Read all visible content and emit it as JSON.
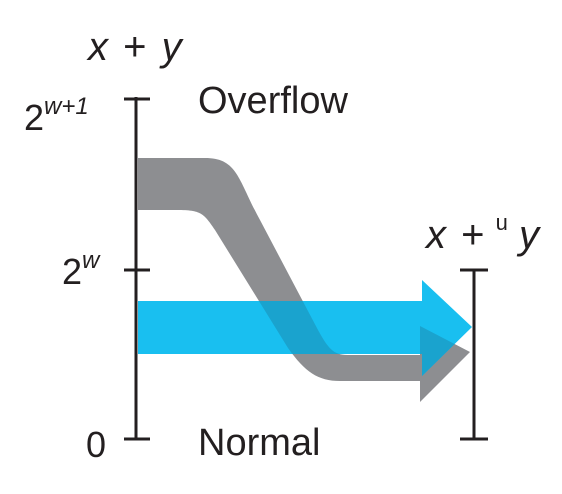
{
  "left_axis": {
    "title_x": "x",
    "title_plus": "+",
    "title_y": "y",
    "tick_top_base": "2",
    "tick_top_exp": "w+1",
    "tick_mid_base": "2",
    "tick_mid_exp": "w",
    "tick_bottom": "0"
  },
  "region_labels": {
    "overflow": "Overflow",
    "normal": "Normal"
  },
  "right_axis": {
    "title_x": "x",
    "title_plus": "+",
    "title_superscript": "u",
    "title_y": "y"
  },
  "colors": {
    "axis": "#231f20",
    "overflow_band": "#8d8e91",
    "normal_band": "#19bff0",
    "overlap": "#1aa3ce"
  }
}
